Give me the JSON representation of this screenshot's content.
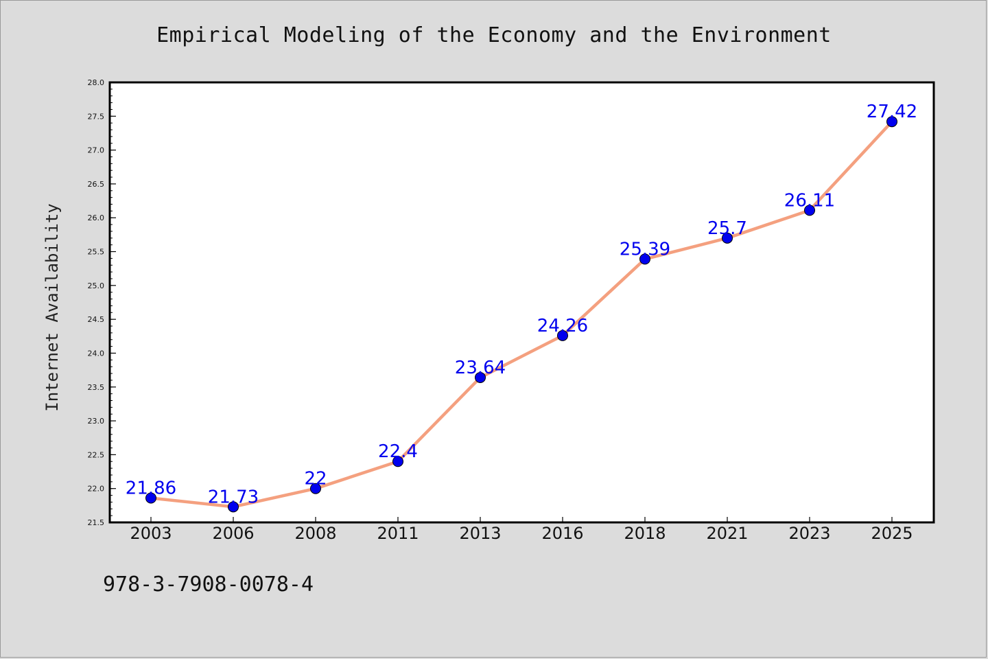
{
  "page": {
    "background": "#dcdcdc",
    "footer_text": "978-3-7908-0078-4"
  },
  "chart_data": {
    "type": "line",
    "title": "Empirical Modeling of the Economy and the Environment",
    "xlabel": "",
    "ylabel": "Internet Availability",
    "categories": [
      "2003",
      "2006",
      "2008",
      "2011",
      "2013",
      "2016",
      "2018",
      "2021",
      "2023",
      "2025"
    ],
    "series": [
      {
        "values": [
          21.86,
          21.73,
          22,
          22.4,
          23.64,
          24.26,
          25.39,
          25.7,
          26.11,
          27.42
        ],
        "data_labels": [
          "21.86",
          "21.73",
          "22",
          "22.4",
          "23.64",
          "24.26",
          "25.39",
          "25.7",
          "26.11",
          "27.42"
        ],
        "line_color": "#f4a07f",
        "marker_color": "#0000ee",
        "label_color": "#0000ee"
      }
    ],
    "ylim": [
      21.5,
      28.0
    ],
    "yticks": [
      "21.5",
      "22.0",
      "22.5",
      "23.0",
      "23.5",
      "24.0",
      "24.5",
      "25.0",
      "25.5",
      "26.0",
      "26.5",
      "27.0",
      "27.5",
      "28.0"
    ],
    "grid": false,
    "legend": "none",
    "plot_background": "#ffffff"
  }
}
